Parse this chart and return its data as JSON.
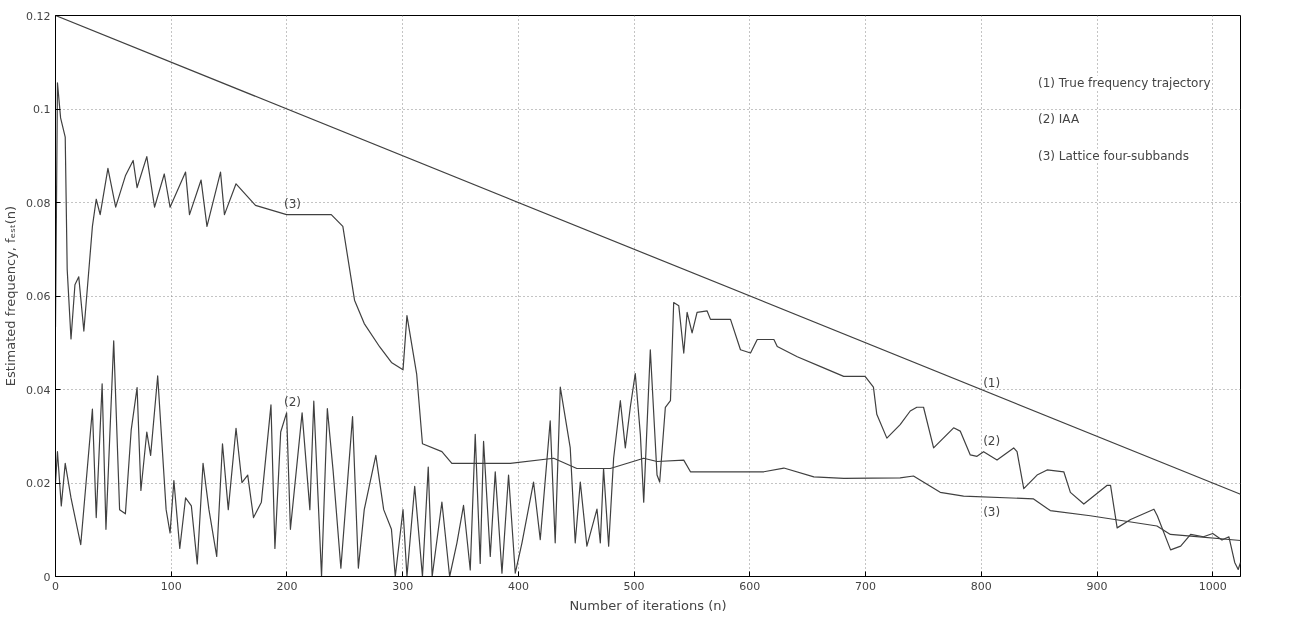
{
  "chart_data": {
    "type": "line",
    "xlabel": "Number of iterations (n)",
    "ylabel": "Estimated frequency, fₑₛₜ(n)",
    "xlim": [
      0,
      1024
    ],
    "ylim": [
      0,
      0.12
    ],
    "xticks": [
      0,
      100,
      200,
      300,
      400,
      500,
      600,
      700,
      800,
      900,
      1000
    ],
    "yticks": [
      0,
      0.02,
      0.04,
      0.06,
      0.08,
      0.1,
      0.12
    ],
    "grid": true,
    "marker": "none",
    "line_style": "solid",
    "series": [
      {
        "name": "(1)",
        "color": "#404040",
        "x": [
          0,
          1024
        ],
        "values": [
          0.12,
          0.0176
        ]
      },
      {
        "name": "(2)",
        "color": "#404040",
        "x": [
          0,
          1.7,
          5.0,
          8.4,
          13.4,
          21.8,
          31.9,
          35.2,
          40.3,
          43.6,
          50.3,
          55.4,
          60.4,
          65.4,
          70.5,
          73.8,
          78.9,
          82.2,
          88.3,
          95.6,
          99.0,
          102.3,
          107.4,
          112.4,
          117.4,
          122.5,
          127.5,
          132.6,
          139.3,
          144.3,
          149.3,
          156.0,
          161.1,
          166.1,
          171.1,
          177.9,
          186.2,
          189.6,
          194.6,
          199.7,
          203.0,
          213.1,
          219.8,
          223.2,
          229.9,
          234.9,
          239.9,
          246.6,
          256.7,
          261.7,
          266.8,
          276.8,
          283.6,
          290.3,
          293.6,
          300.3,
          303.7,
          310.4,
          317.1,
          322.1,
          325.5,
          333.9,
          340.6,
          346.9,
          352.6,
          358.4,
          362.7,
          367.0,
          369.9,
          375.7,
          380.0,
          385.8,
          391.5,
          397.3,
          403.1,
          413.1,
          418.9,
          427.5,
          431.8,
          436.2,
          444.8,
          449.1,
          453.5,
          459.2,
          467.9,
          470.8,
          473.6,
          478.0,
          482.3,
          488.1,
          492.4,
          496.7,
          501.0,
          505.4,
          508.3,
          514.0,
          519.8,
          522.1,
          527.0,
          531.4,
          534.2,
          538.6,
          542.9,
          545.8,
          550.1,
          554.4,
          563.1,
          566.0,
          583.3,
          591.9,
          600.6,
          606.4,
          620.8,
          623.7,
          641.0,
          661.2,
          681.1,
          699.6,
          706.8,
          709.7,
          718.4,
          729.9,
          738.6,
          744.3,
          750.1,
          758.8,
          776.1,
          781.8,
          790.5,
          796.3,
          802.0,
          813.6,
          828.0,
          830.9,
          836.7,
          848.2,
          856.9,
          871.3,
          877.0,
          888.6,
          908.8,
          911.7,
          917.4,
          929.0,
          949.2,
          952.1,
          963.6,
          972.3,
          980.9,
          992,
          1000,
          1008,
          1014,
          1019,
          1022,
          1024
        ],
        "values": [
          0.02,
          0.0267,
          0.0151,
          0.0242,
          0.0168,
          0.0068,
          0.0358,
          0.0126,
          0.0412,
          0.0101,
          0.0504,
          0.0143,
          0.0134,
          0.0313,
          0.0404,
          0.0184,
          0.0309,
          0.0259,
          0.0429,
          0.0143,
          0.0093,
          0.0205,
          0.006,
          0.0168,
          0.0151,
          0.0027,
          0.0242,
          0.0143,
          0.0043,
          0.0284,
          0.0143,
          0.0317,
          0.0201,
          0.0217,
          0.0126,
          0.0159,
          0.0367,
          0.006,
          0.0309,
          0.035,
          0.0101,
          0.035,
          0.0143,
          0.0375,
          0,
          0.0359,
          0.0226,
          0.0018,
          0.0342,
          0.0018,
          0.0143,
          0.0259,
          0.0143,
          0.0101,
          0,
          0.0143,
          0,
          0.0193,
          0,
          0.0234,
          0,
          0.0159,
          0,
          0.0072,
          0.0152,
          0.0014,
          0.0304,
          0.0028,
          0.0289,
          0.0043,
          0.0224,
          0.0007,
          0.0217,
          0.0007,
          0.0072,
          0.0202,
          0.0079,
          0.0333,
          0.0072,
          0.0405,
          0.0275,
          0.0072,
          0.0202,
          0.0065,
          0.0144,
          0.0072,
          0.0231,
          0.0065,
          0.0253,
          0.0376,
          0.0275,
          0.0362,
          0.0434,
          0.0304,
          0.0159,
          0.0485,
          0.0217,
          0.0202,
          0.0362,
          0.0376,
          0.0586,
          0.0579,
          0.0478,
          0.0565,
          0.0521,
          0.0565,
          0.0568,
          0.055,
          0.055,
          0.0485,
          0.0478,
          0.0507,
          0.0507,
          0.0492,
          0.047,
          0.0449,
          0.0428,
          0.0428,
          0.0405,
          0.0347,
          0.0296,
          0.0325,
          0.0354,
          0.0362,
          0.0362,
          0.0275,
          0.0318,
          0.0311,
          0.026,
          0.0257,
          0.0267,
          0.0249,
          0.0275,
          0.0267,
          0.0188,
          0.0217,
          0.0228,
          0.0224,
          0.018,
          0.0155,
          0.0195,
          0.0195,
          0.0104,
          0.0122,
          0.0144,
          0.013,
          0.0057,
          0.0065,
          0.009,
          0.0085,
          0.0092,
          0.0078,
          0.0085,
          0.003,
          0.0015,
          0.003
        ]
      },
      {
        "name": "(3)",
        "color": "#404040",
        "x": [
          0,
          1.7,
          4.4,
          8.4,
          10.1,
          13.4,
          16.8,
          20.1,
          24.5,
          31.9,
          35.2,
          38.6,
          45.3,
          52.0,
          60.4,
          67.1,
          70.5,
          78.9,
          85.6,
          94.0,
          99.0,
          112.4,
          115.8,
          125.8,
          130.9,
          142.6,
          146.0,
          156.0,
          172.8,
          199.7,
          238.3,
          248.3,
          258.4,
          266.8,
          280.2,
          290.3,
          300.3,
          303.7,
          312.1,
          317.1,
          333.9,
          342.5,
          393.0,
          430.5,
          450.5,
          479.4,
          508.3,
          519.8,
          542.9,
          548.7,
          612.1,
          629.4,
          655.3,
          681.3,
          729.9,
          741.4,
          764.5,
          784.7,
          845.2,
          859.6,
          894.2,
          951.8,
          963.4,
          983.6,
          1024
        ],
        "values": [
          0.0533,
          0.1056,
          0.0981,
          0.094,
          0.0657,
          0.0508,
          0.0624,
          0.0641,
          0.0525,
          0.0749,
          0.0807,
          0.0774,
          0.0873,
          0.079,
          0.0857,
          0.089,
          0.0832,
          0.0898,
          0.079,
          0.0861,
          0.079,
          0.0865,
          0.0774,
          0.0848,
          0.0749,
          0.0865,
          0.0774,
          0.084,
          0.0794,
          0.0774,
          0.0774,
          0.0749,
          0.0591,
          0.0541,
          0.0491,
          0.0458,
          0.0442,
          0.0558,
          0.0433,
          0.0284,
          0.0267,
          0.0242,
          0.0242,
          0.0253,
          0.0231,
          0.0231,
          0.0253,
          0.0246,
          0.0249,
          0.0224,
          0.0224,
          0.0232,
          0.0213,
          0.021,
          0.0211,
          0.0215,
          0.018,
          0.0172,
          0.0166,
          0.0141,
          0.013,
          0.0108,
          0.009,
          0.0086,
          0.0077
        ]
      }
    ],
    "annotations": [
      "(1) True frequency trajectory",
      "(2)  IAA",
      "(3)  Lattice four-subbands"
    ]
  }
}
